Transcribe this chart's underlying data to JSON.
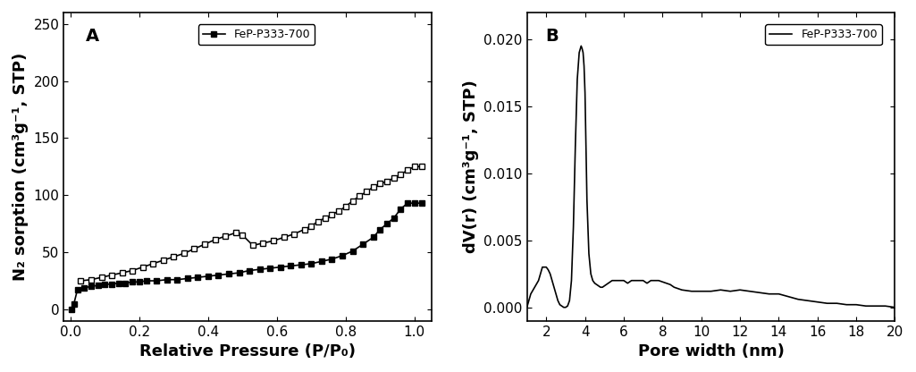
{
  "panel_A": {
    "label": "A",
    "xlabel": "Relative Pressure (P/P₀)",
    "ylabel": "N₂ sorption (cm³g⁻¹, STP)",
    "xlim": [
      -0.02,
      1.05
    ],
    "ylim": [
      -10,
      260
    ],
    "yticks": [
      0,
      50,
      100,
      150,
      200,
      250
    ],
    "xticks": [
      0.0,
      0.2,
      0.4,
      0.6,
      0.8,
      1.0
    ],
    "legend_label": "FeP-P333-700",
    "adsorption_x": [
      0.003,
      0.01,
      0.02,
      0.04,
      0.06,
      0.08,
      0.1,
      0.12,
      0.14,
      0.16,
      0.18,
      0.2,
      0.22,
      0.25,
      0.28,
      0.31,
      0.34,
      0.37,
      0.4,
      0.43,
      0.46,
      0.49,
      0.52,
      0.55,
      0.58,
      0.61,
      0.64,
      0.67,
      0.7,
      0.73,
      0.76,
      0.79,
      0.82,
      0.85,
      0.88,
      0.9,
      0.92,
      0.94,
      0.96,
      0.98,
      1.0,
      1.02
    ],
    "adsorption_y": [
      0,
      5,
      17,
      19,
      20,
      21,
      22,
      22,
      23,
      23,
      24,
      24,
      25,
      25,
      26,
      26,
      27,
      28,
      29,
      30,
      31,
      32,
      34,
      35,
      36,
      37,
      38,
      39,
      40,
      42,
      44,
      47,
      51,
      57,
      63,
      70,
      75,
      80,
      88,
      93,
      93,
      93
    ],
    "desorption_x": [
      1.02,
      1.0,
      0.98,
      0.96,
      0.94,
      0.92,
      0.9,
      0.88,
      0.86,
      0.84,
      0.82,
      0.8,
      0.78,
      0.76,
      0.74,
      0.72,
      0.7,
      0.68,
      0.65,
      0.62,
      0.59,
      0.56,
      0.53,
      0.5,
      0.48,
      0.45,
      0.42,
      0.39,
      0.36,
      0.33,
      0.3,
      0.27,
      0.24,
      0.21,
      0.18,
      0.15,
      0.12,
      0.09,
      0.06,
      0.03
    ],
    "desorption_y": [
      125,
      125,
      122,
      118,
      115,
      112,
      110,
      107,
      103,
      99,
      95,
      90,
      86,
      83,
      80,
      77,
      73,
      70,
      66,
      63,
      60,
      58,
      56,
      65,
      67,
      64,
      61,
      57,
      53,
      49,
      46,
      43,
      40,
      37,
      34,
      32,
      30,
      28,
      26,
      25
    ]
  },
  "panel_B": {
    "label": "B",
    "xlabel": "Pore width (nm)",
    "ylabel": "dV(r) (cm³g⁻¹, STP)",
    "xlim": [
      1,
      20
    ],
    "ylim": [
      -0.001,
      0.022
    ],
    "yticks": [
      0.0,
      0.005,
      0.01,
      0.015,
      0.02
    ],
    "xticks": [
      2,
      4,
      6,
      8,
      10,
      12,
      14,
      16,
      18,
      20
    ],
    "legend_label": "FeP-P333-700",
    "pore_x": [
      1.0,
      1.2,
      1.4,
      1.6,
      1.7,
      1.8,
      1.9,
      2.0,
      2.1,
      2.2,
      2.3,
      2.4,
      2.5,
      2.6,
      2.7,
      2.8,
      2.9,
      3.0,
      3.1,
      3.2,
      3.3,
      3.4,
      3.5,
      3.6,
      3.7,
      3.8,
      3.85,
      3.9,
      3.95,
      4.0,
      4.05,
      4.1,
      4.2,
      4.3,
      4.4,
      4.5,
      4.6,
      4.7,
      4.8,
      4.9,
      5.0,
      5.2,
      5.4,
      5.6,
      5.8,
      6.0,
      6.2,
      6.4,
      6.6,
      6.8,
      7.0,
      7.2,
      7.4,
      7.6,
      7.8,
      8.0,
      8.2,
      8.4,
      8.6,
      8.8,
      9.0,
      9.5,
      10.0,
      10.5,
      11.0,
      11.5,
      12.0,
      12.5,
      13.0,
      13.5,
      14.0,
      14.5,
      15.0,
      15.5,
      16.0,
      16.5,
      17.0,
      17.5,
      18.0,
      18.5,
      19.0,
      19.5,
      20.0
    ],
    "pore_y": [
      0.0,
      0.001,
      0.0015,
      0.002,
      0.0025,
      0.003,
      0.003,
      0.003,
      0.0028,
      0.0025,
      0.002,
      0.0015,
      0.001,
      0.0005,
      0.0002,
      0.0001,
      0.0,
      0.0,
      0.0001,
      0.0005,
      0.002,
      0.006,
      0.012,
      0.017,
      0.019,
      0.0195,
      0.0193,
      0.019,
      0.018,
      0.016,
      0.012,
      0.008,
      0.004,
      0.0025,
      0.002,
      0.0018,
      0.0017,
      0.0016,
      0.0015,
      0.0015,
      0.0016,
      0.0018,
      0.002,
      0.002,
      0.002,
      0.002,
      0.0018,
      0.002,
      0.002,
      0.002,
      0.002,
      0.0018,
      0.002,
      0.002,
      0.002,
      0.0019,
      0.0018,
      0.0017,
      0.0015,
      0.0014,
      0.0013,
      0.0012,
      0.0012,
      0.0012,
      0.0013,
      0.0012,
      0.0013,
      0.0012,
      0.0011,
      0.001,
      0.001,
      0.0008,
      0.0006,
      0.0005,
      0.0004,
      0.0003,
      0.0003,
      0.0002,
      0.0002,
      0.0001,
      0.0001,
      0.0001,
      0.0
    ]
  },
  "line_color": "#000000",
  "bg_color": "#ffffff",
  "font_size_label": 13,
  "font_size_tick": 11,
  "font_size_panel": 14
}
